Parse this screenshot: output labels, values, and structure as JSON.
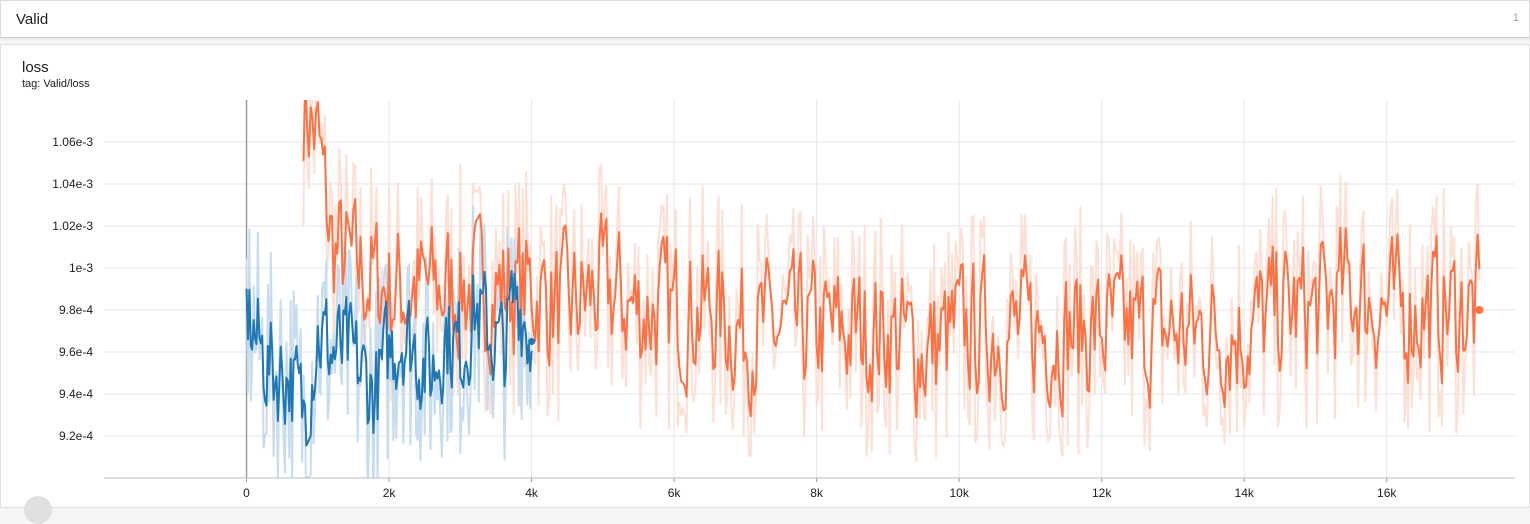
{
  "header": {
    "title": "Valid",
    "count": "1"
  },
  "card": {
    "title": "loss",
    "tag": "tag: Valid/loss"
  },
  "colors": {
    "blue": "#1f77b4",
    "blue_faint": "#c6dcef",
    "orange": "#ff7043",
    "orange_faint": "#fde0d5",
    "grid": "#e6e6e6",
    "zero_line": "#9e9e9e"
  },
  "chart_data": {
    "type": "line",
    "title": "loss",
    "xlabel": "",
    "ylabel": "",
    "xlim": [
      -2000,
      17800
    ],
    "ylim": [
      0.0009,
      0.00108
    ],
    "x_ticks": [
      0,
      2000,
      4000,
      6000,
      8000,
      10000,
      12000,
      14000,
      16000
    ],
    "x_tick_labels": [
      "0",
      "2k",
      "4k",
      "6k",
      "8k",
      "10k",
      "12k",
      "14k",
      "16k"
    ],
    "y_ticks": [
      0.00092,
      0.00094,
      0.00096,
      0.00098,
      0.001,
      0.00102,
      0.00104,
      0.00106
    ],
    "y_tick_labels": [
      "9.2e-4",
      "9.4e-4",
      "9.6e-4",
      "9.8e-4",
      "1e-3",
      "1.02e-3",
      "1.04e-3",
      "1.06e-3"
    ],
    "grid": true,
    "series": [
      {
        "color": "#ff7043",
        "x": [
          800,
          1000,
          1200,
          1500,
          2000,
          2500,
          3000,
          3500,
          4000,
          4500,
          5000,
          5500,
          6000,
          6500,
          7000,
          7500,
          8000,
          8500,
          9000,
          9500,
          10000,
          10500,
          11000,
          11500,
          12000,
          12500,
          13000,
          13500,
          14000,
          14500,
          15000,
          15500,
          16000,
          16500,
          17000,
          17300
        ],
        "smoothed": [
          0.00108,
          0.00106,
          0.00101,
          0.001,
          0.00099,
          0.00099,
          0.00099,
          0.00099,
          0.00099,
          0.00098,
          0.00099,
          0.00098,
          0.00098,
          0.00098,
          0.00097,
          0.00097,
          0.00097,
          0.00097,
          0.00097,
          0.00096,
          0.00097,
          0.00097,
          0.00097,
          0.00097,
          0.00097,
          0.00097,
          0.00097,
          0.00097,
          0.00097,
          0.00098,
          0.00098,
          0.00099,
          0.00098,
          0.00098,
          0.00098,
          0.00098
        ]
      },
      {
        "color": "#1f77b4",
        "x": [
          0,
          200,
          400,
          600,
          800,
          1000,
          1200,
          1400,
          1600,
          1800,
          2000,
          2200,
          2400,
          2600,
          2800,
          3000,
          3200,
          3400,
          3600,
          3800,
          4000
        ],
        "smoothed": [
          0.00098,
          0.00096,
          0.00095,
          0.00095,
          0.00093,
          0.00097,
          0.00096,
          0.00096,
          0.00095,
          0.00094,
          0.00096,
          0.00097,
          0.00096,
          0.00095,
          0.00097,
          0.00096,
          0.00098,
          0.00097,
          0.00096,
          0.00099,
          0.000965
        ]
      }
    ]
  }
}
